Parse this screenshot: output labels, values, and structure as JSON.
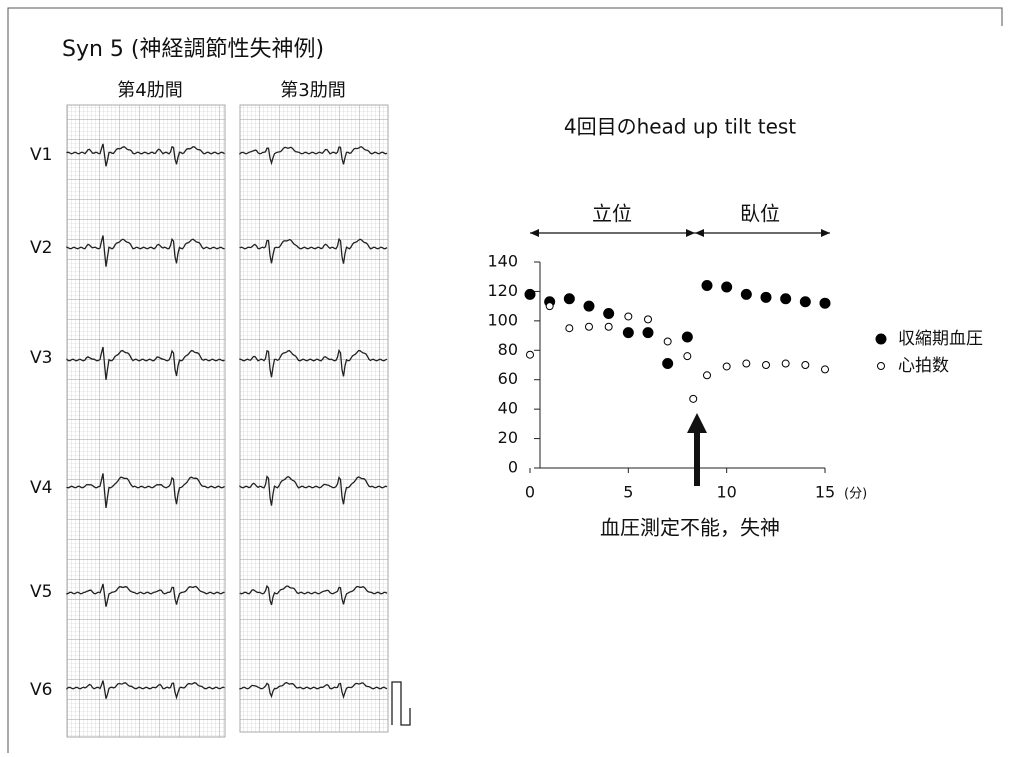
{
  "title": "Syn 5 (神経調節性失神例)",
  "ecg": {
    "columns": [
      "第4肋間",
      "第3肋間"
    ],
    "leads": [
      "V1",
      "V2",
      "V3",
      "V4",
      "V5",
      "V6"
    ]
  },
  "chart_data": {
    "type": "scatter",
    "title": "4回目のhead up tilt test",
    "phases": [
      "立位",
      "臥位"
    ],
    "annotation": "血圧測定不能，失神",
    "x_unit": "(分)",
    "xlim": [
      0,
      15
    ],
    "xticks": [
      0,
      5,
      10,
      15
    ],
    "ylim": [
      0,
      140
    ],
    "yticks": [
      0,
      20,
      40,
      60,
      80,
      100,
      120,
      140
    ],
    "series": [
      {
        "name": "収縮期血圧",
        "color": "#000000",
        "filled": true,
        "x": [
          0,
          1,
          2,
          3,
          4,
          5,
          6,
          7,
          8,
          9,
          10,
          11,
          12,
          13,
          14,
          15
        ],
        "values": [
          118,
          113,
          115,
          110,
          105,
          92,
          92,
          71,
          89,
          124,
          123,
          118,
          116,
          115,
          113,
          112
        ]
      },
      {
        "name": "心拍数",
        "color": "#000000",
        "filled": false,
        "x": [
          0,
          1,
          2,
          3,
          4,
          5,
          6,
          7,
          8,
          8.3,
          9,
          10,
          11,
          12,
          13,
          14,
          15
        ],
        "values": [
          77,
          110,
          95,
          96,
          96,
          103,
          101,
          86,
          76,
          47,
          63,
          69,
          71,
          70,
          71,
          70,
          67
        ]
      }
    ]
  }
}
